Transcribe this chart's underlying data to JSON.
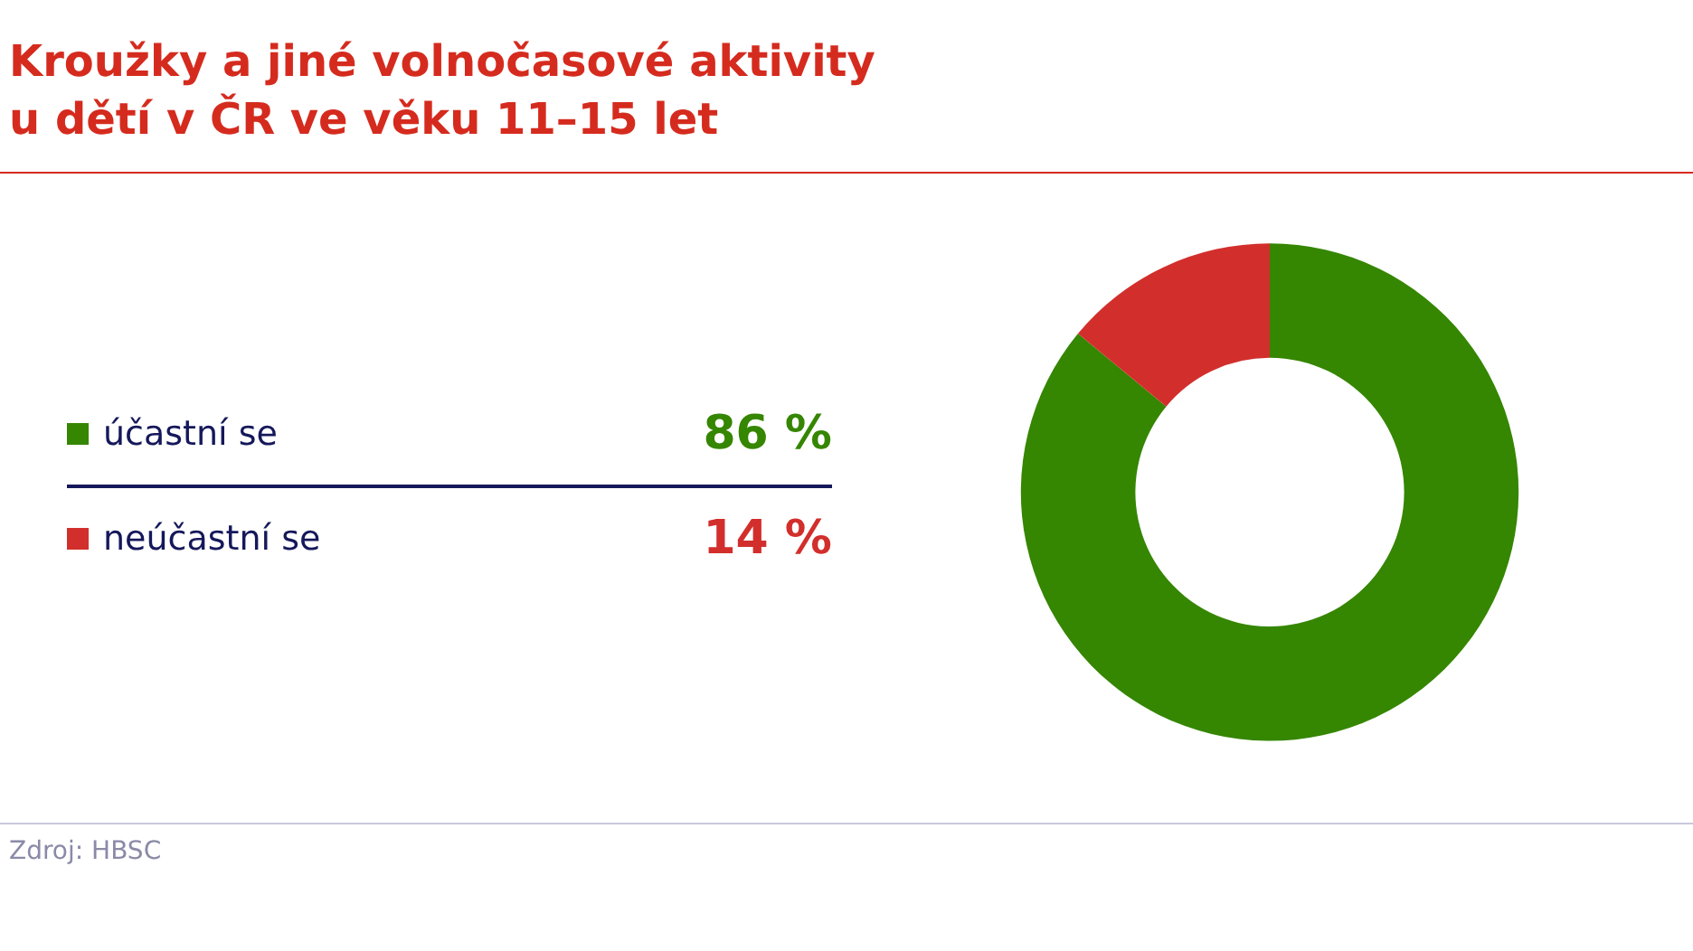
{
  "chart_data": {
    "type": "donut",
    "title": "Kroužky a jiné volnočasové aktivity\nu dětí v ČR ve věku 11–15 let",
    "categories": [
      "účastní se",
      "neúčastní se"
    ],
    "values": [
      86,
      14
    ],
    "colors": [
      "#358600",
      "#d22f2c"
    ],
    "value_labels": [
      "86 %",
      "14 %"
    ],
    "legend": "left",
    "annotations": [
      "Zdroj: HBSC"
    ]
  }
}
